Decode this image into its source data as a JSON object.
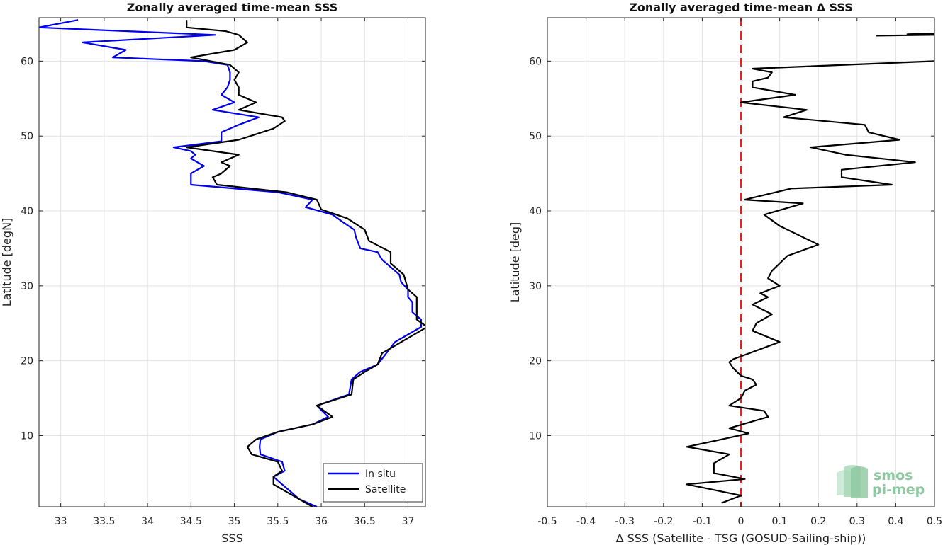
{
  "chart_data": [
    {
      "type": "line",
      "title": "Zonally averaged time-mean SSS",
      "xlabel": "SSS",
      "ylabel": "Latitude [degN]",
      "xlim": [
        32.75,
        37.2
      ],
      "ylim": [
        0.5,
        65.8
      ],
      "xticks": [
        33,
        33.5,
        34,
        34.5,
        35,
        35.5,
        36,
        36.5,
        37
      ],
      "xtick_labels": [
        "33",
        "33.5",
        "34",
        "34.5",
        "35",
        "35.5",
        "36",
        "36.5",
        "37"
      ],
      "yticks": [
        10,
        20,
        30,
        40,
        50,
        60
      ],
      "ytick_labels": [
        "10",
        "20",
        "30",
        "40",
        "50",
        "60"
      ],
      "grid": true,
      "legend_position": "bottom-right",
      "series": [
        {
          "name": "In situ",
          "color": "#0000ee",
          "points": [
            [
              35.95,
              0.5
            ],
            [
              35.75,
              1.5
            ],
            [
              35.65,
              2.5
            ],
            [
              35.55,
              3.5
            ],
            [
              35.45,
              4.5
            ],
            [
              35.58,
              5.3
            ],
            [
              35.55,
              6.5
            ],
            [
              35.3,
              7.5
            ],
            [
              35.29,
              8.5
            ],
            [
              35.3,
              9.5
            ],
            [
              35.5,
              10.5
            ],
            [
              35.9,
              11.5
            ],
            [
              36.08,
              12.5
            ],
            [
              35.95,
              14
            ],
            [
              36.32,
              15.5
            ],
            [
              36.35,
              17.5
            ],
            [
              36.45,
              18.5
            ],
            [
              36.65,
              19.5
            ],
            [
              36.75,
              21
            ],
            [
              36.85,
              22.5
            ],
            [
              37.15,
              24.5
            ],
            [
              37.15,
              25.5
            ],
            [
              37.05,
              26.5
            ],
            [
              37.05,
              27.8
            ],
            [
              37.0,
              28.5
            ],
            [
              37.0,
              29.5
            ],
            [
              36.92,
              30.5
            ],
            [
              36.9,
              31.5
            ],
            [
              36.8,
              32.5
            ],
            [
              36.7,
              33.5
            ],
            [
              36.65,
              34.5
            ],
            [
              36.45,
              35
            ],
            [
              36.4,
              36.5
            ],
            [
              36.38,
              37.5
            ],
            [
              36.25,
              38.5
            ],
            [
              36.13,
              39.5
            ],
            [
              35.82,
              40.5
            ],
            [
              35.9,
              41.5
            ],
            [
              35.5,
              42.5
            ],
            [
              34.5,
              43.5
            ],
            [
              34.5,
              45
            ],
            [
              34.65,
              46
            ],
            [
              34.5,
              47
            ],
            [
              34.55,
              47.5
            ],
            [
              34.5,
              48
            ],
            [
              34.3,
              48.5
            ],
            [
              34.85,
              49.3
            ],
            [
              34.85,
              50.5
            ],
            [
              35.05,
              51.5
            ],
            [
              35.28,
              52.5
            ],
            [
              34.75,
              53.5
            ],
            [
              35.0,
              54.5
            ],
            [
              34.85,
              55.5
            ],
            [
              34.92,
              56.5
            ],
            [
              34.95,
              57.5
            ],
            [
              34.95,
              58.5
            ],
            [
              34.92,
              59.5
            ],
            [
              34.65,
              60
            ],
            [
              33.6,
              60.5
            ],
            [
              33.75,
              61.5
            ],
            [
              33.25,
              62.5
            ],
            [
              34.78,
              63.5
            ],
            [
              32.75,
              64.5
            ],
            [
              33.2,
              65.5
            ]
          ]
        },
        {
          "name": "Satellite",
          "color": "#000000",
          "points": [
            [
              35.9,
              0.5
            ],
            [
              35.75,
              1.5
            ],
            [
              35.45,
              3.5
            ],
            [
              35.45,
              4.5
            ],
            [
              35.55,
              5.3
            ],
            [
              35.5,
              6.5
            ],
            [
              35.2,
              7.5
            ],
            [
              35.15,
              8.5
            ],
            [
              35.25,
              9.5
            ],
            [
              35.5,
              10.5
            ],
            [
              35.9,
              11.5
            ],
            [
              36.13,
              12.5
            ],
            [
              35.95,
              14
            ],
            [
              36.35,
              15.5
            ],
            [
              36.37,
              17.5
            ],
            [
              36.5,
              18.5
            ],
            [
              36.65,
              19.5
            ],
            [
              36.7,
              21
            ],
            [
              37.22,
              24.5
            ],
            [
              37.1,
              25.5
            ],
            [
              37.1,
              26.5
            ],
            [
              37.1,
              27.8
            ],
            [
              37.1,
              28.5
            ],
            [
              37.0,
              29.5
            ],
            [
              36.95,
              31.5
            ],
            [
              36.8,
              33
            ],
            [
              36.8,
              34.5
            ],
            [
              36.55,
              36
            ],
            [
              36.5,
              37.5
            ],
            [
              36.3,
              39
            ],
            [
              36.0,
              40.2
            ],
            [
              35.95,
              41.5
            ],
            [
              35.6,
              42.5
            ],
            [
              34.8,
              43.5
            ],
            [
              34.75,
              44.5
            ],
            [
              34.85,
              45
            ],
            [
              34.95,
              46
            ],
            [
              34.85,
              46.5
            ],
            [
              35.05,
              47.5
            ],
            [
              34.45,
              48.5
            ],
            [
              35.05,
              49.5
            ],
            [
              35.45,
              51
            ],
            [
              35.58,
              52
            ],
            [
              35.55,
              52.5
            ],
            [
              35.05,
              53.5
            ],
            [
              35.25,
              54.5
            ],
            [
              35.05,
              55.5
            ],
            [
              35.05,
              56.5
            ],
            [
              35.0,
              57.5
            ],
            [
              35.05,
              58.5
            ],
            [
              34.95,
              59.5
            ],
            [
              34.5,
              60.5
            ],
            [
              35.0,
              61.5
            ],
            [
              35.15,
              62.5
            ],
            [
              35.05,
              63.5
            ],
            [
              34.9,
              64
            ],
            [
              34.45,
              64.5
            ],
            [
              34.45,
              65.5
            ]
          ]
        }
      ]
    },
    {
      "type": "line",
      "title": "Zonally averaged time-mean Δ SSS",
      "xlabel": "Δ SSS (Satellite - TSG (GOSUD-Sailing-ship))",
      "ylabel": "Latitude [deg]",
      "xlim": [
        -0.5,
        0.5
      ],
      "ylim": [
        0.5,
        65.8
      ],
      "xticks": [
        -0.5,
        -0.4,
        -0.3,
        -0.2,
        -0.1,
        0,
        0.1,
        0.2,
        0.3,
        0.4,
        0.5
      ],
      "xtick_labels": [
        "-0.5",
        "-0.4",
        "-0.3",
        "-0.2",
        "-0.1",
        "0",
        "0.1",
        "0.2",
        "0.3",
        "0.4",
        "0.5"
      ],
      "yticks": [
        10,
        20,
        30,
        40,
        50,
        60
      ],
      "ytick_labels": [
        "10",
        "20",
        "30",
        "40",
        "50",
        "60"
      ],
      "grid": true,
      "reference_line": {
        "x": 0,
        "color": "#dd2222",
        "style": "dashed"
      },
      "series": [
        {
          "color": "#000000",
          "points": [
            [
              -0.05,
              1
            ],
            [
              0,
              2
            ],
            [
              -0.14,
              3.5
            ],
            [
              0.01,
              4.2
            ],
            [
              -0.07,
              5
            ],
            [
              -0.07,
              6.3
            ],
            [
              -0.03,
              7.5
            ],
            [
              -0.14,
              8.5
            ],
            [
              -0.05,
              9.5
            ],
            [
              0.02,
              10.3
            ],
            [
              -0.03,
              11
            ],
            [
              0.07,
              12.5
            ],
            [
              0.06,
              13.3
            ],
            [
              -0.03,
              14
            ],
            [
              0,
              15
            ],
            [
              0.01,
              16
            ],
            [
              0.04,
              16.8
            ],
            [
              0.03,
              17.5
            ],
            [
              0.0,
              18
            ],
            [
              -0.02,
              19
            ],
            [
              -0.03,
              19.8
            ],
            [
              -0.02,
              20.2
            ],
            [
              0.1,
              22.5
            ],
            [
              0.03,
              24
            ],
            [
              0.04,
              25
            ],
            [
              0.08,
              26.2
            ],
            [
              0.03,
              27.5
            ],
            [
              0.07,
              28.5
            ],
            [
              0.05,
              29
            ],
            [
              0.1,
              30
            ],
            [
              0.07,
              31
            ],
            [
              0.08,
              32
            ],
            [
              0.12,
              34
            ],
            [
              0.2,
              35.5
            ],
            [
              0.1,
              38
            ],
            [
              0.06,
              39.5
            ],
            [
              0.16,
              41
            ],
            [
              0.01,
              41.5
            ],
            [
              0.13,
              43
            ],
            [
              0.39,
              43.5
            ],
            [
              0.26,
              44.5
            ],
            [
              0.26,
              45.5
            ],
            [
              0.45,
              46.5
            ],
            [
              0.27,
              47.5
            ],
            [
              0.18,
              48.5
            ],
            [
              0.41,
              49.5
            ],
            [
              0.33,
              50.5
            ],
            [
              0.32,
              51.5
            ],
            [
              0.11,
              52.5
            ],
            [
              0.17,
              53.5
            ],
            [
              0.0,
              54.5
            ],
            [
              0.14,
              55.5
            ],
            [
              0.03,
              56.5
            ],
            [
              0.03,
              57.3
            ],
            [
              0.07,
              57.8
            ],
            [
              0.08,
              58.5
            ],
            [
              0.03,
              59
            ],
            [
              0.5,
              60
            ]
          ]
        },
        {
          "color": "#000000",
          "points": [
            [
              0.35,
              63.4
            ],
            [
              0.5,
              63.5
            ],
            [
              0.43,
              63.6
            ],
            [
              0.5,
              63.7
            ]
          ]
        }
      ]
    }
  ],
  "legend": {
    "items": [
      "In situ",
      "Satellite"
    ]
  },
  "logo": {
    "line1": "smos",
    "line2": "pi-mep"
  }
}
